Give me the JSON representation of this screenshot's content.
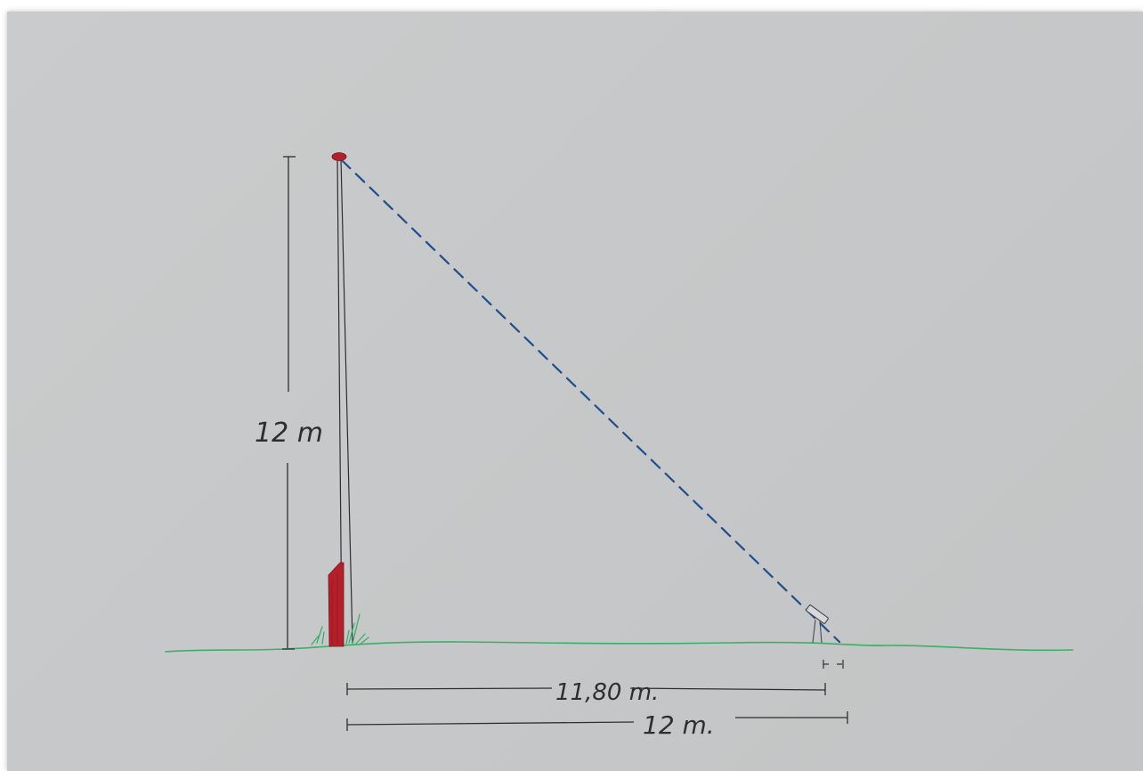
{
  "labels": {
    "height": "12 m",
    "distance_short": "11,80 m.",
    "distance_long": "12 m."
  },
  "colors": {
    "paper": "#c7c9ca",
    "pencil": "#2e2e30",
    "grass": "#3fae6a",
    "red_marker": "#b3202a",
    "sight_line": "#1f4e8c"
  },
  "icons": {
    "flagpole": "flagpole-icon",
    "observer_device": "telescope-icon",
    "grass_tuft": "grass-icon"
  }
}
